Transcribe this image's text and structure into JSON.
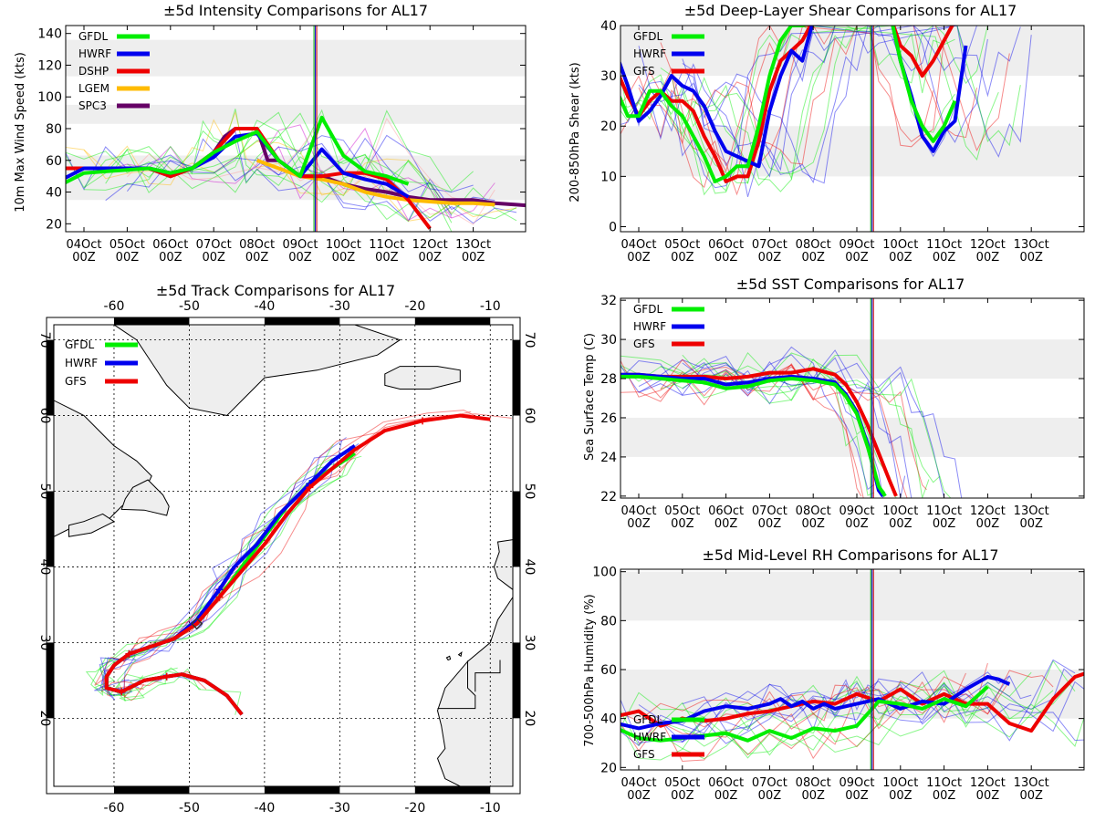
{
  "colors": {
    "GFDL": "#00ee00",
    "HWRF": "#0000ee",
    "GFS": "#ee0000",
    "DSHP": "#ee0000",
    "LGEM": "#ffbb00",
    "SPC3": "#660066",
    "shade": "#eeeeee",
    "land": "#eeeeee",
    "vline1": "#00aa00",
    "vline2": "#0000cc",
    "vline3": "#cc0000"
  },
  "time_axis": {
    "labels": [
      "04Oct",
      "05Oct",
      "06Oct",
      "07Oct",
      "08Oct",
      "09Oct",
      "10Oct",
      "11Oct",
      "12Oct",
      "13Oct"
    ],
    "sublabel": "00Z",
    "range": [
      0,
      10
    ],
    "now": 5.35
  },
  "chart_data": [
    {
      "id": "intensity",
      "type": "line",
      "title": "±5d Intensity Comparisons for AL17",
      "ylabel": "10m Max Wind Speed (kts)",
      "ylim": [
        15,
        145
      ],
      "yticks": [
        20,
        40,
        60,
        80,
        100,
        120,
        140
      ],
      "bands": [
        [
          35,
          63
        ],
        [
          83,
          95
        ],
        [
          113,
          136
        ]
      ],
      "legend": [
        "GFDL",
        "HWRF",
        "DSHP",
        "LGEM",
        "SPC3"
      ],
      "series": [
        {
          "name": "SPC3",
          "x": [
            -0.5,
            0,
            0.5,
            1,
            1.5,
            2,
            2.5,
            3,
            3.25,
            3.5,
            3.75,
            4,
            4.25,
            4.5,
            5,
            5.5,
            6,
            6.5,
            7,
            7.5,
            8,
            8.5,
            9,
            9.5,
            10,
            10.5
          ],
          "y": [
            55,
            55,
            55,
            55,
            55,
            50,
            55,
            65,
            75,
            80,
            80,
            80,
            60,
            60,
            50,
            50,
            45,
            42,
            40,
            37,
            35,
            35,
            35,
            33,
            32,
            31
          ]
        },
        {
          "name": "LGEM",
          "x": [
            4,
            4.5,
            5,
            5.5,
            6,
            6.5,
            7,
            7.5,
            8,
            8.5,
            9,
            9.5
          ],
          "y": [
            60,
            55,
            50,
            48,
            45,
            40,
            37,
            35,
            34,
            33,
            33,
            32
          ]
        },
        {
          "name": "DSHP",
          "x": [
            -0.5,
            0,
            0.5,
            1,
            1.5,
            2,
            2.5,
            3,
            3.5,
            4,
            4.5,
            5,
            5.5,
            6,
            6.5,
            7,
            7.5,
            8
          ],
          "y": [
            55,
            55,
            55,
            55,
            55,
            50,
            55,
            65,
            80,
            80,
            60,
            50,
            50,
            52,
            52,
            48,
            35,
            17
          ]
        },
        {
          "name": "HWRF",
          "x": [
            -0.5,
            0,
            0.5,
            1,
            1.5,
            2,
            2.5,
            3,
            3.5,
            4,
            4.5,
            5,
            5.5,
            6,
            6.5,
            7,
            7.5
          ],
          "y": [
            48,
            55,
            55,
            55,
            55,
            52,
            55,
            62,
            75,
            77,
            60,
            50,
            67,
            52,
            48,
            45,
            37
          ]
        },
        {
          "name": "GFDL",
          "x": [
            -0.5,
            0,
            0.5,
            1,
            1.5,
            2,
            2.5,
            3,
            3.5,
            4,
            4.5,
            5,
            5.5,
            6,
            6.5,
            7,
            7.5
          ],
          "y": [
            45,
            52,
            53,
            54,
            55,
            52,
            55,
            65,
            72,
            78,
            60,
            50,
            87,
            63,
            53,
            50,
            45
          ]
        }
      ]
    },
    {
      "id": "shear",
      "type": "line",
      "title": "±5d Deep-Layer Shear Comparisons for AL17",
      "ylabel": "200-850hPa Shear (kts)",
      "ylim": [
        -1,
        40
      ],
      "yticks": [
        0,
        10,
        20,
        30,
        40
      ],
      "bands": [
        [
          10,
          20
        ],
        [
          30,
          40
        ]
      ],
      "legend": [
        "GFDL",
        "HWRF",
        "GFS"
      ],
      "series": [
        {
          "name": "GFS",
          "x": [
            -0.5,
            -0.25,
            0,
            0.25,
            0.5,
            0.75,
            1,
            1.25,
            1.5,
            1.75,
            2,
            2.25,
            2.5,
            2.75,
            3,
            3.25,
            3.5,
            3.75,
            4,
            5.8,
            6,
            6.25,
            6.5,
            6.75,
            7,
            7.25
          ],
          "y": [
            31,
            26,
            22,
            25,
            27,
            25,
            25,
            23,
            18,
            14,
            9,
            10,
            10,
            17,
            27,
            33,
            35,
            37,
            41,
            41,
            36,
            34,
            30,
            33,
            37,
            41
          ]
        },
        {
          "name": "HWRF",
          "x": [
            -0.5,
            -0.25,
            0,
            0.25,
            0.5,
            0.75,
            1,
            1.25,
            1.5,
            1.75,
            2,
            2.25,
            2.5,
            2.75,
            3,
            3.25,
            3.5,
            3.75,
            4,
            5.8,
            6,
            6.25,
            6.5,
            6.75,
            7,
            7.25,
            7.5
          ],
          "y": [
            34,
            28,
            21,
            23,
            26,
            30,
            28,
            27,
            24,
            19,
            15,
            14,
            13,
            12,
            23,
            30,
            35,
            33,
            41,
            41,
            33,
            26,
            18,
            15,
            19,
            21,
            36
          ]
        },
        {
          "name": "GFDL",
          "x": [
            -0.5,
            -0.25,
            0,
            0.25,
            0.5,
            0.75,
            1,
            1.25,
            1.5,
            1.75,
            2,
            2.25,
            2.5,
            2.75,
            3,
            3.25,
            3.5,
            3.75,
            4,
            5.8,
            6,
            6.25,
            6.5,
            6.75,
            7,
            7.25
          ],
          "y": [
            27,
            22,
            22,
            27,
            27,
            24,
            22,
            18,
            14,
            9,
            10,
            12,
            12,
            20,
            30,
            37,
            40,
            40,
            41,
            41,
            33,
            25,
            20,
            17,
            20,
            25
          ]
        }
      ]
    },
    {
      "id": "sst",
      "type": "line",
      "title": "±5d SST Comparisons for AL17",
      "ylabel": "Sea Surface Temp (C)",
      "ylim": [
        21.9,
        32.1
      ],
      "yticks": [
        22,
        24,
        26,
        28,
        30,
        32
      ],
      "bands": [
        [
          24,
          26
        ],
        [
          28,
          30
        ]
      ],
      "legend": [
        "GFDL",
        "HWRF",
        "GFS"
      ],
      "series": [
        {
          "name": "GFS",
          "x": [
            -0.5,
            0,
            0.5,
            1,
            1.5,
            2,
            2.5,
            3,
            3.5,
            4,
            4.5,
            4.75,
            5,
            5.25,
            5.5,
            5.75,
            5.9
          ],
          "y": [
            28.2,
            28.2,
            28.1,
            28.1,
            28.1,
            28,
            28.1,
            28.3,
            28.3,
            28.5,
            28.2,
            27.7,
            26.8,
            25.6,
            24.2,
            22.8,
            22
          ]
        },
        {
          "name": "HWRF",
          "x": [
            -0.5,
            0,
            0.5,
            1,
            1.5,
            2,
            2.5,
            3,
            3.5,
            4,
            4.5,
            4.75,
            5,
            5.25,
            5.5,
            5.6
          ],
          "y": [
            28.2,
            28.2,
            28.1,
            28,
            28,
            27.7,
            27.8,
            28,
            28.1,
            28,
            27.8,
            27.2,
            26.3,
            24.6,
            22.3,
            22
          ]
        },
        {
          "name": "GFDL",
          "x": [
            -0.5,
            0,
            0.5,
            1,
            1.5,
            2,
            2.5,
            3,
            3.5,
            4,
            4.5,
            4.75,
            5,
            5.25,
            5.5,
            5.65
          ],
          "y": [
            28.1,
            28.1,
            28,
            27.9,
            27.8,
            27.5,
            27.6,
            27.9,
            28,
            27.9,
            27.7,
            27.1,
            26.2,
            24.5,
            22.5,
            22
          ]
        }
      ]
    },
    {
      "id": "rh",
      "type": "line",
      "title": "±5d Mid-Level RH Comparisons for AL17",
      "ylabel": "700-500hPa Humidity (%)",
      "ylim": [
        19,
        101
      ],
      "yticks": [
        20,
        40,
        60,
        80,
        100
      ],
      "bands": [
        [
          40,
          60
        ],
        [
          80,
          100
        ]
      ],
      "legend": [
        "GFDL",
        "HWRF",
        "GFS"
      ],
      "series": [
        {
          "name": "GFS",
          "x": [
            -0.5,
            0,
            0.5,
            1,
            1.5,
            2,
            2.5,
            3,
            3.5,
            4,
            4.5,
            5,
            5.5,
            6,
            6.5,
            7,
            7.5,
            8,
            8.5,
            9,
            9.5,
            10,
            10.5
          ],
          "y": [
            41,
            43,
            37,
            40,
            39,
            40,
            42,
            43,
            45,
            47,
            46,
            50,
            47,
            52,
            46,
            50,
            46,
            46,
            38,
            35,
            48,
            57,
            60
          ]
        },
        {
          "name": "HWRF",
          "x": [
            -0.5,
            0,
            0.5,
            1,
            1.5,
            2,
            2.5,
            3,
            3.25,
            3.5,
            3.75,
            4,
            4.25,
            4.5,
            5,
            5.5,
            6,
            6.5,
            7,
            7.5,
            8,
            8.25,
            8.5
          ],
          "y": [
            38,
            36,
            38,
            39,
            43,
            45,
            44,
            46,
            48,
            45,
            47,
            44,
            46,
            44,
            46,
            48,
            44,
            47,
            46,
            52,
            57,
            56,
            54
          ]
        },
        {
          "name": "GFDL",
          "x": [
            -0.5,
            0,
            0.5,
            1,
            1.5,
            2,
            2.5,
            3,
            3.5,
            4,
            4.5,
            5,
            5.5,
            6,
            6.5,
            7,
            7.5,
            8
          ],
          "y": [
            36,
            32,
            31,
            32,
            33,
            34,
            31,
            35,
            32,
            36,
            35,
            37,
            47,
            46,
            44,
            48,
            45,
            53
          ]
        }
      ]
    }
  ],
  "track_chart": {
    "title": "±5d Track Comparisons for AL17",
    "lon_labels": [
      "-60",
      "-50",
      "-40",
      "-30",
      "-20",
      "-10"
    ],
    "lat_labels": [
      "20",
      "30",
      "40",
      "50",
      "60",
      "70"
    ],
    "legend": [
      "GFDL",
      "HWRF",
      "GFS"
    ],
    "lon_range": [
      -68,
      -7
    ],
    "lat_range": [
      11,
      72
    ],
    "tracks": [
      {
        "name": "GFDL",
        "lon": [
          -43,
          -45,
          -48,
          -51,
          -53,
          -56,
          -58,
          -59,
          -59,
          -61,
          -61,
          -60,
          -58,
          -55,
          -52,
          -49,
          -46,
          -43,
          -40,
          -37,
          -34,
          -31,
          -28
        ],
        "lat": [
          20.5,
          23,
          25,
          25.8,
          25.5,
          25,
          24,
          23.5,
          23.5,
          24,
          25.5,
          27,
          28.5,
          29.5,
          30.5,
          32.5,
          36,
          40,
          44,
          48,
          51,
          53,
          55
        ]
      },
      {
        "name": "HWRF",
        "lon": [
          -43,
          -45,
          -48,
          -51,
          -53,
          -56,
          -58,
          -59,
          -59,
          -61,
          -61,
          -60,
          -58,
          -55,
          -52,
          -49,
          -46,
          -44,
          -41,
          -38,
          -34,
          -31,
          -28
        ],
        "lat": [
          20.5,
          23,
          25,
          25.8,
          25.5,
          25,
          24,
          23.5,
          23.5,
          24,
          25.5,
          27,
          28.5,
          29.5,
          30.5,
          33,
          37,
          40,
          43,
          47,
          51,
          54,
          56
        ]
      },
      {
        "name": "GFS",
        "lon": [
          -43,
          -45,
          -48,
          -51,
          -53,
          -56,
          -58,
          -59,
          -59,
          -61,
          -61,
          -60,
          -58,
          -55,
          -52,
          -49,
          -46,
          -43,
          -40,
          -37,
          -34,
          -31,
          -28,
          -24,
          -19,
          -14,
          -10
        ],
        "lat": [
          20.5,
          23,
          25,
          25.8,
          25.5,
          25,
          24,
          23.5,
          23.5,
          24,
          25.5,
          27,
          28.5,
          29.5,
          30.5,
          32.5,
          36,
          39.5,
          43,
          47,
          50.5,
          53,
          55.5,
          58,
          59.3,
          60,
          59.5
        ]
      }
    ]
  }
}
